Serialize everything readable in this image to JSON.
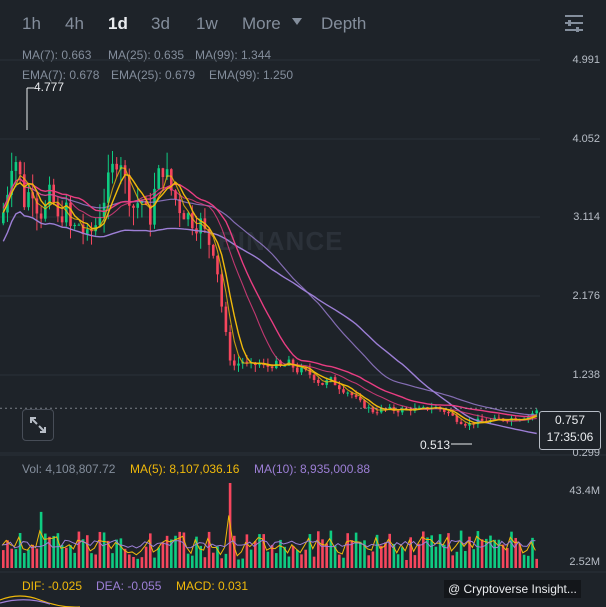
{
  "header": {
    "tabs": [
      {
        "label": "1h",
        "active": false
      },
      {
        "label": "4h",
        "active": false
      },
      {
        "label": "1d",
        "active": true
      },
      {
        "label": "3d",
        "active": false
      },
      {
        "label": "1w",
        "active": false
      },
      {
        "label": "More",
        "active": false
      },
      {
        "label": "Depth",
        "active": false
      }
    ],
    "settings_icon": "chart-settings-icon"
  },
  "indicators": {
    "ma": [
      {
        "label": "MA(7): 0.663",
        "color": "#f0b90b"
      },
      {
        "label": "MA(25): 0.635",
        "color": "#e93d82"
      },
      {
        "label": "MA(99): 1.344",
        "color": "#9d7fd6"
      }
    ],
    "ema": [
      {
        "label": "EMA(7): 0.678",
        "color": "#f0b90b"
      },
      {
        "label": "EMA(25): 0.679",
        "color": "#e93d82"
      },
      {
        "label": "EMA(99): 1.250",
        "color": "#9d7fd6"
      }
    ]
  },
  "price_axis": [
    "4.991",
    "4.052",
    "3.114",
    "2.176",
    "1.238",
    "0.299"
  ],
  "watermark": "BINANCE",
  "annotations": {
    "high": "4.777",
    "low": "0.513"
  },
  "current_price": {
    "price": "0.757",
    "countdown": "17:35:06"
  },
  "volume": {
    "vol_label": "Vol: 4,108,807.72",
    "ma5_label": "MA(5): 8,107,036.16",
    "ma10_label": "MA(10): 8,935,000.88",
    "axis_top": "43.4M",
    "axis_bottom": "2.52M"
  },
  "macd": {
    "dif_label": "DIF: -0.025",
    "dea_label": "DEA: -0.055",
    "macd_label": "MACD: 0.031"
  },
  "credit": "@ Cryptoverse Insight...",
  "colors": {
    "up": "#0ecb81",
    "down": "#f6465d",
    "bg": "#1e2329"
  }
}
